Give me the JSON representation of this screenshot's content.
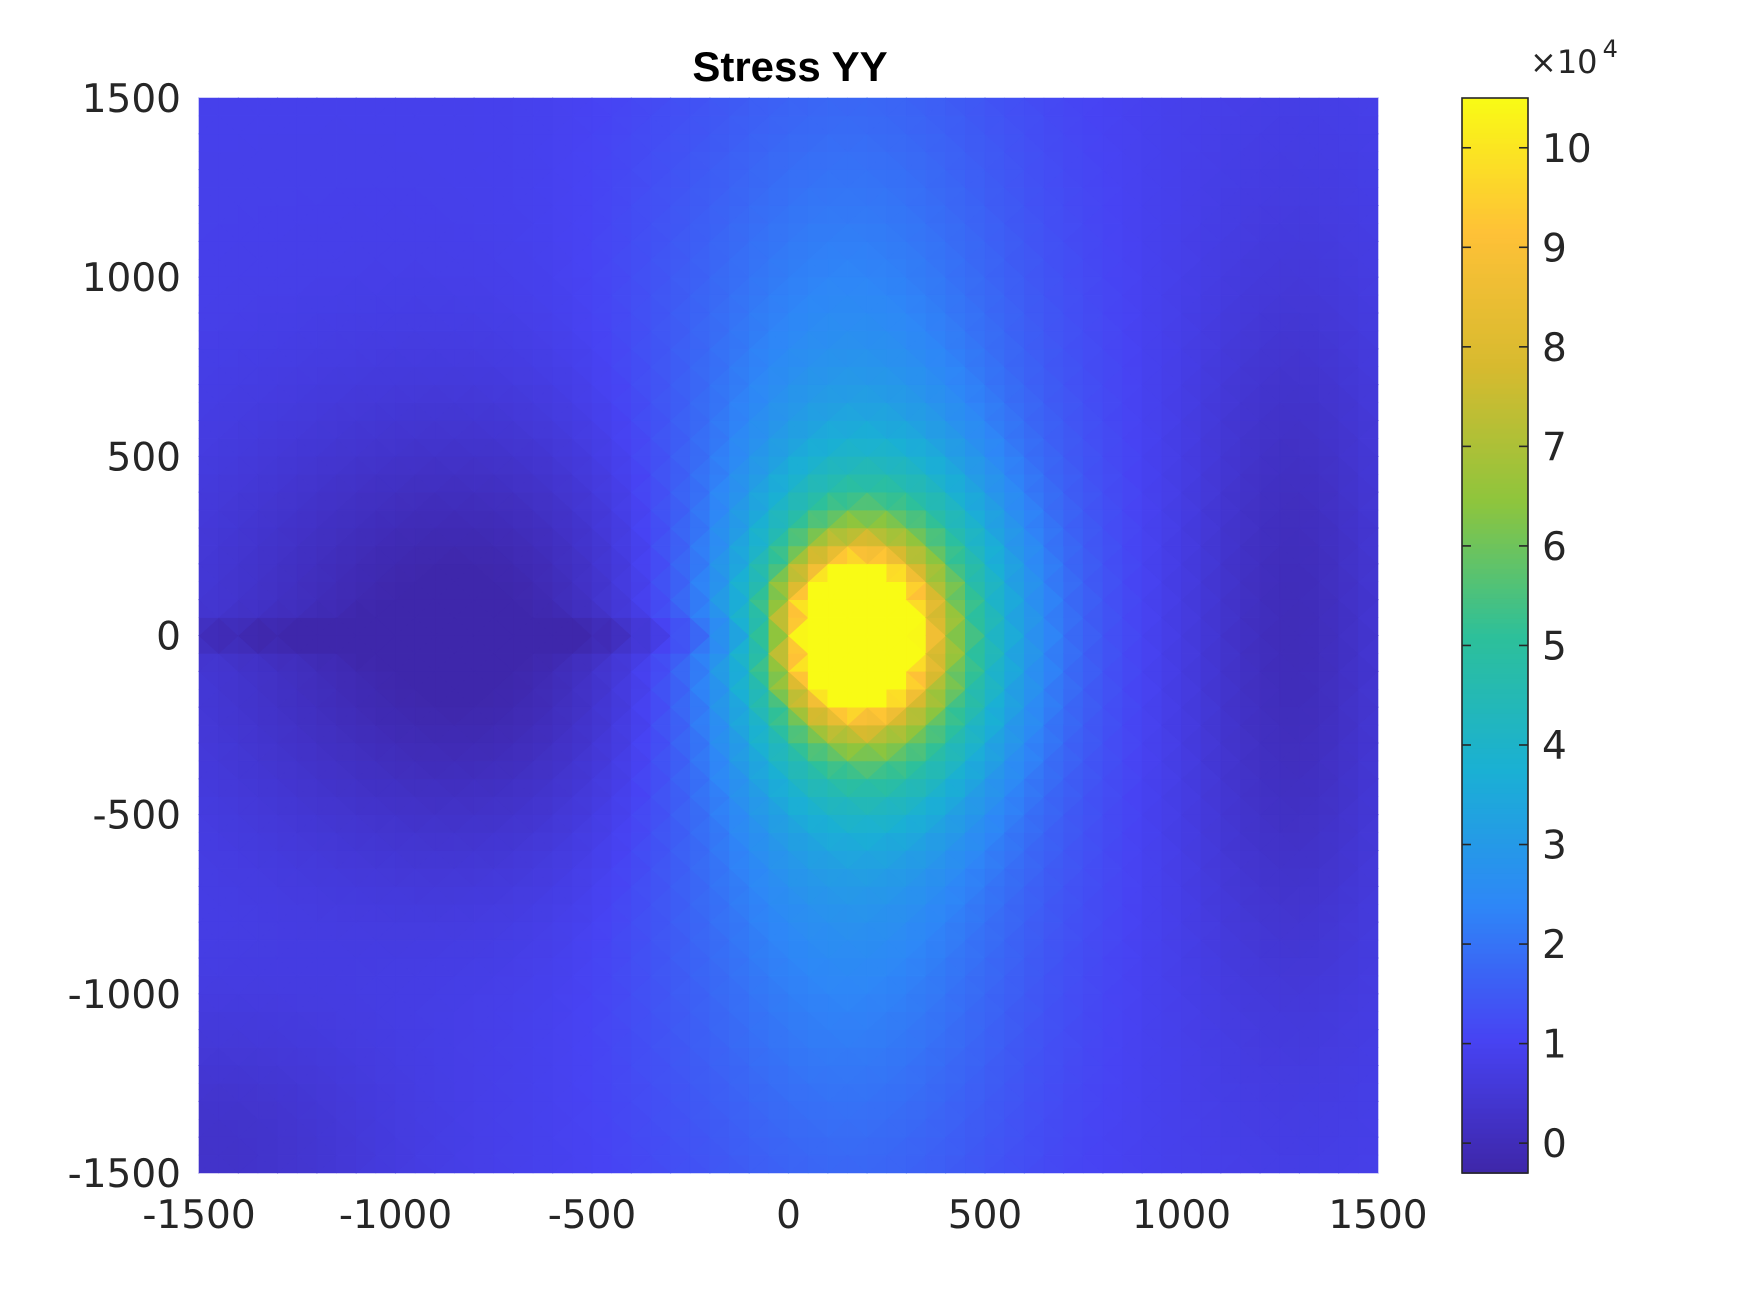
{
  "chart_data": {
    "type": "heatmap",
    "title": "Stress YY",
    "xlabel": "",
    "ylabel": "",
    "xlim": [
      -1500,
      1500
    ],
    "ylim": [
      -1500,
      1500
    ],
    "x_ticks": [
      -1500,
      -1000,
      -500,
      0,
      500,
      1000,
      1500
    ],
    "y_ticks": [
      1500,
      1000,
      500,
      0,
      -500,
      -1000,
      -1500
    ],
    "x_tick_labels": [
      "-1500",
      "-1000",
      "-500",
      "0",
      "500",
      "1000",
      "1500"
    ],
    "y_tick_labels": [
      "1500",
      "1000",
      "500",
      "0",
      "-500",
      "-1000",
      "-1500"
    ],
    "colormap": "parula",
    "colorbar": {
      "range": [
        -3000,
        105000
      ],
      "ticks": [
        0,
        1,
        2,
        3,
        4,
        5,
        6,
        7,
        8,
        9,
        10
      ],
      "tick_labels": [
        "0",
        "1",
        "2",
        "3",
        "4",
        "5",
        "6",
        "7",
        "8",
        "9",
        "10"
      ],
      "multiplier_base": "×10",
      "multiplier_exponent": "4"
    },
    "field": {
      "description_units": "Stress YY values (×10^4)",
      "background_level": 0.9,
      "peak_value": 10.5,
      "peak_location": [
        150,
        0
      ],
      "features": [
        {
          "kind": "hotspot",
          "x": 170,
          "y": 0,
          "sx": 150,
          "sy": 190,
          "amplitude": 10.0
        },
        {
          "kind": "hotspot",
          "x": 220,
          "y": 0,
          "sx": 320,
          "sy": 420,
          "amplitude": 5.2
        },
        {
          "kind": "band",
          "x": 150,
          "y": 0,
          "sx": 480,
          "sy": 1500,
          "amplitude": 2.3
        },
        {
          "kind": "low",
          "x": -800,
          "y": 0,
          "sx": 650,
          "sy": 600,
          "amplitude": -1.3
        },
        {
          "kind": "low",
          "x": 1280,
          "y": 0,
          "sx": 260,
          "sy": 1000,
          "amplitude": -0.9
        },
        {
          "kind": "low",
          "x": -1450,
          "y": -1450,
          "sx": 450,
          "sy": 400,
          "amplitude": -0.6
        }
      ]
    }
  },
  "colors": {
    "axes_text": "#262626",
    "title": "#000000",
    "colormap_stops": [
      "#3e26a8",
      "#4743f3",
      "#2e87f7",
      "#1ab0d4",
      "#2dc09a",
      "#8ec53d",
      "#d7ba2f",
      "#fec137",
      "#f9fb15"
    ]
  }
}
